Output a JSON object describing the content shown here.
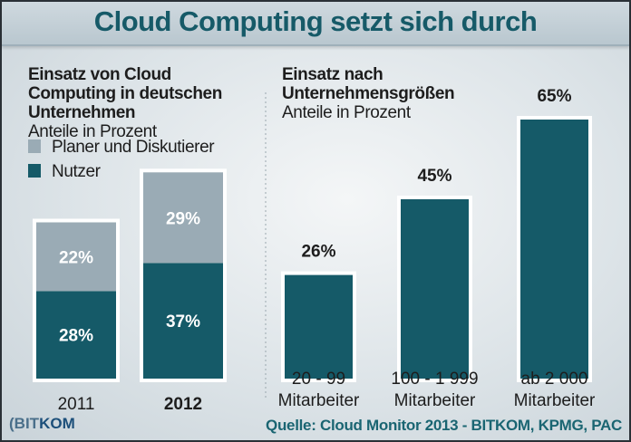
{
  "title": "Cloud Computing setzt sich durch",
  "chart_data": [
    {
      "type": "bar",
      "stacked": true,
      "title": "Einsatz von Cloud Computing in deutschen Unternehmen",
      "subtitle": "Anteile in Prozent",
      "categories": [
        "2011",
        "2012"
      ],
      "series": [
        {
          "name": "Nutzer",
          "values": [
            28,
            37
          ],
          "labels": [
            "28%",
            "37%"
          ],
          "color": "#155a68"
        },
        {
          "name": "Planer und Diskutierer",
          "values": [
            22,
            29
          ],
          "labels": [
            "22%",
            "29%"
          ],
          "color": "#9aabb5"
        }
      ],
      "legend": {
        "placement": "top-left",
        "items": [
          "Planer und Diskutierer",
          "Nutzer"
        ]
      },
      "grid": false
    },
    {
      "type": "bar",
      "title": "Einsatz nach Unternehmensgrößen",
      "subtitle": "Anteile in Prozent",
      "categories": [
        [
          "20 - 99",
          "Mitarbeiter"
        ],
        [
          "100 - 1 999",
          "Mitarbeiter"
        ],
        [
          "ab 2 000",
          "Mitarbeiter"
        ]
      ],
      "values": [
        26,
        45,
        65
      ],
      "labels": [
        "26%",
        "45%",
        "65%"
      ],
      "color": "#155a68",
      "grid": false
    }
  ],
  "source": "Quelle: Cloud Monitor 2013 - BITKOM, KPMG, PAC",
  "logo": {
    "part1": "BIT",
    "part2": "KOM"
  }
}
